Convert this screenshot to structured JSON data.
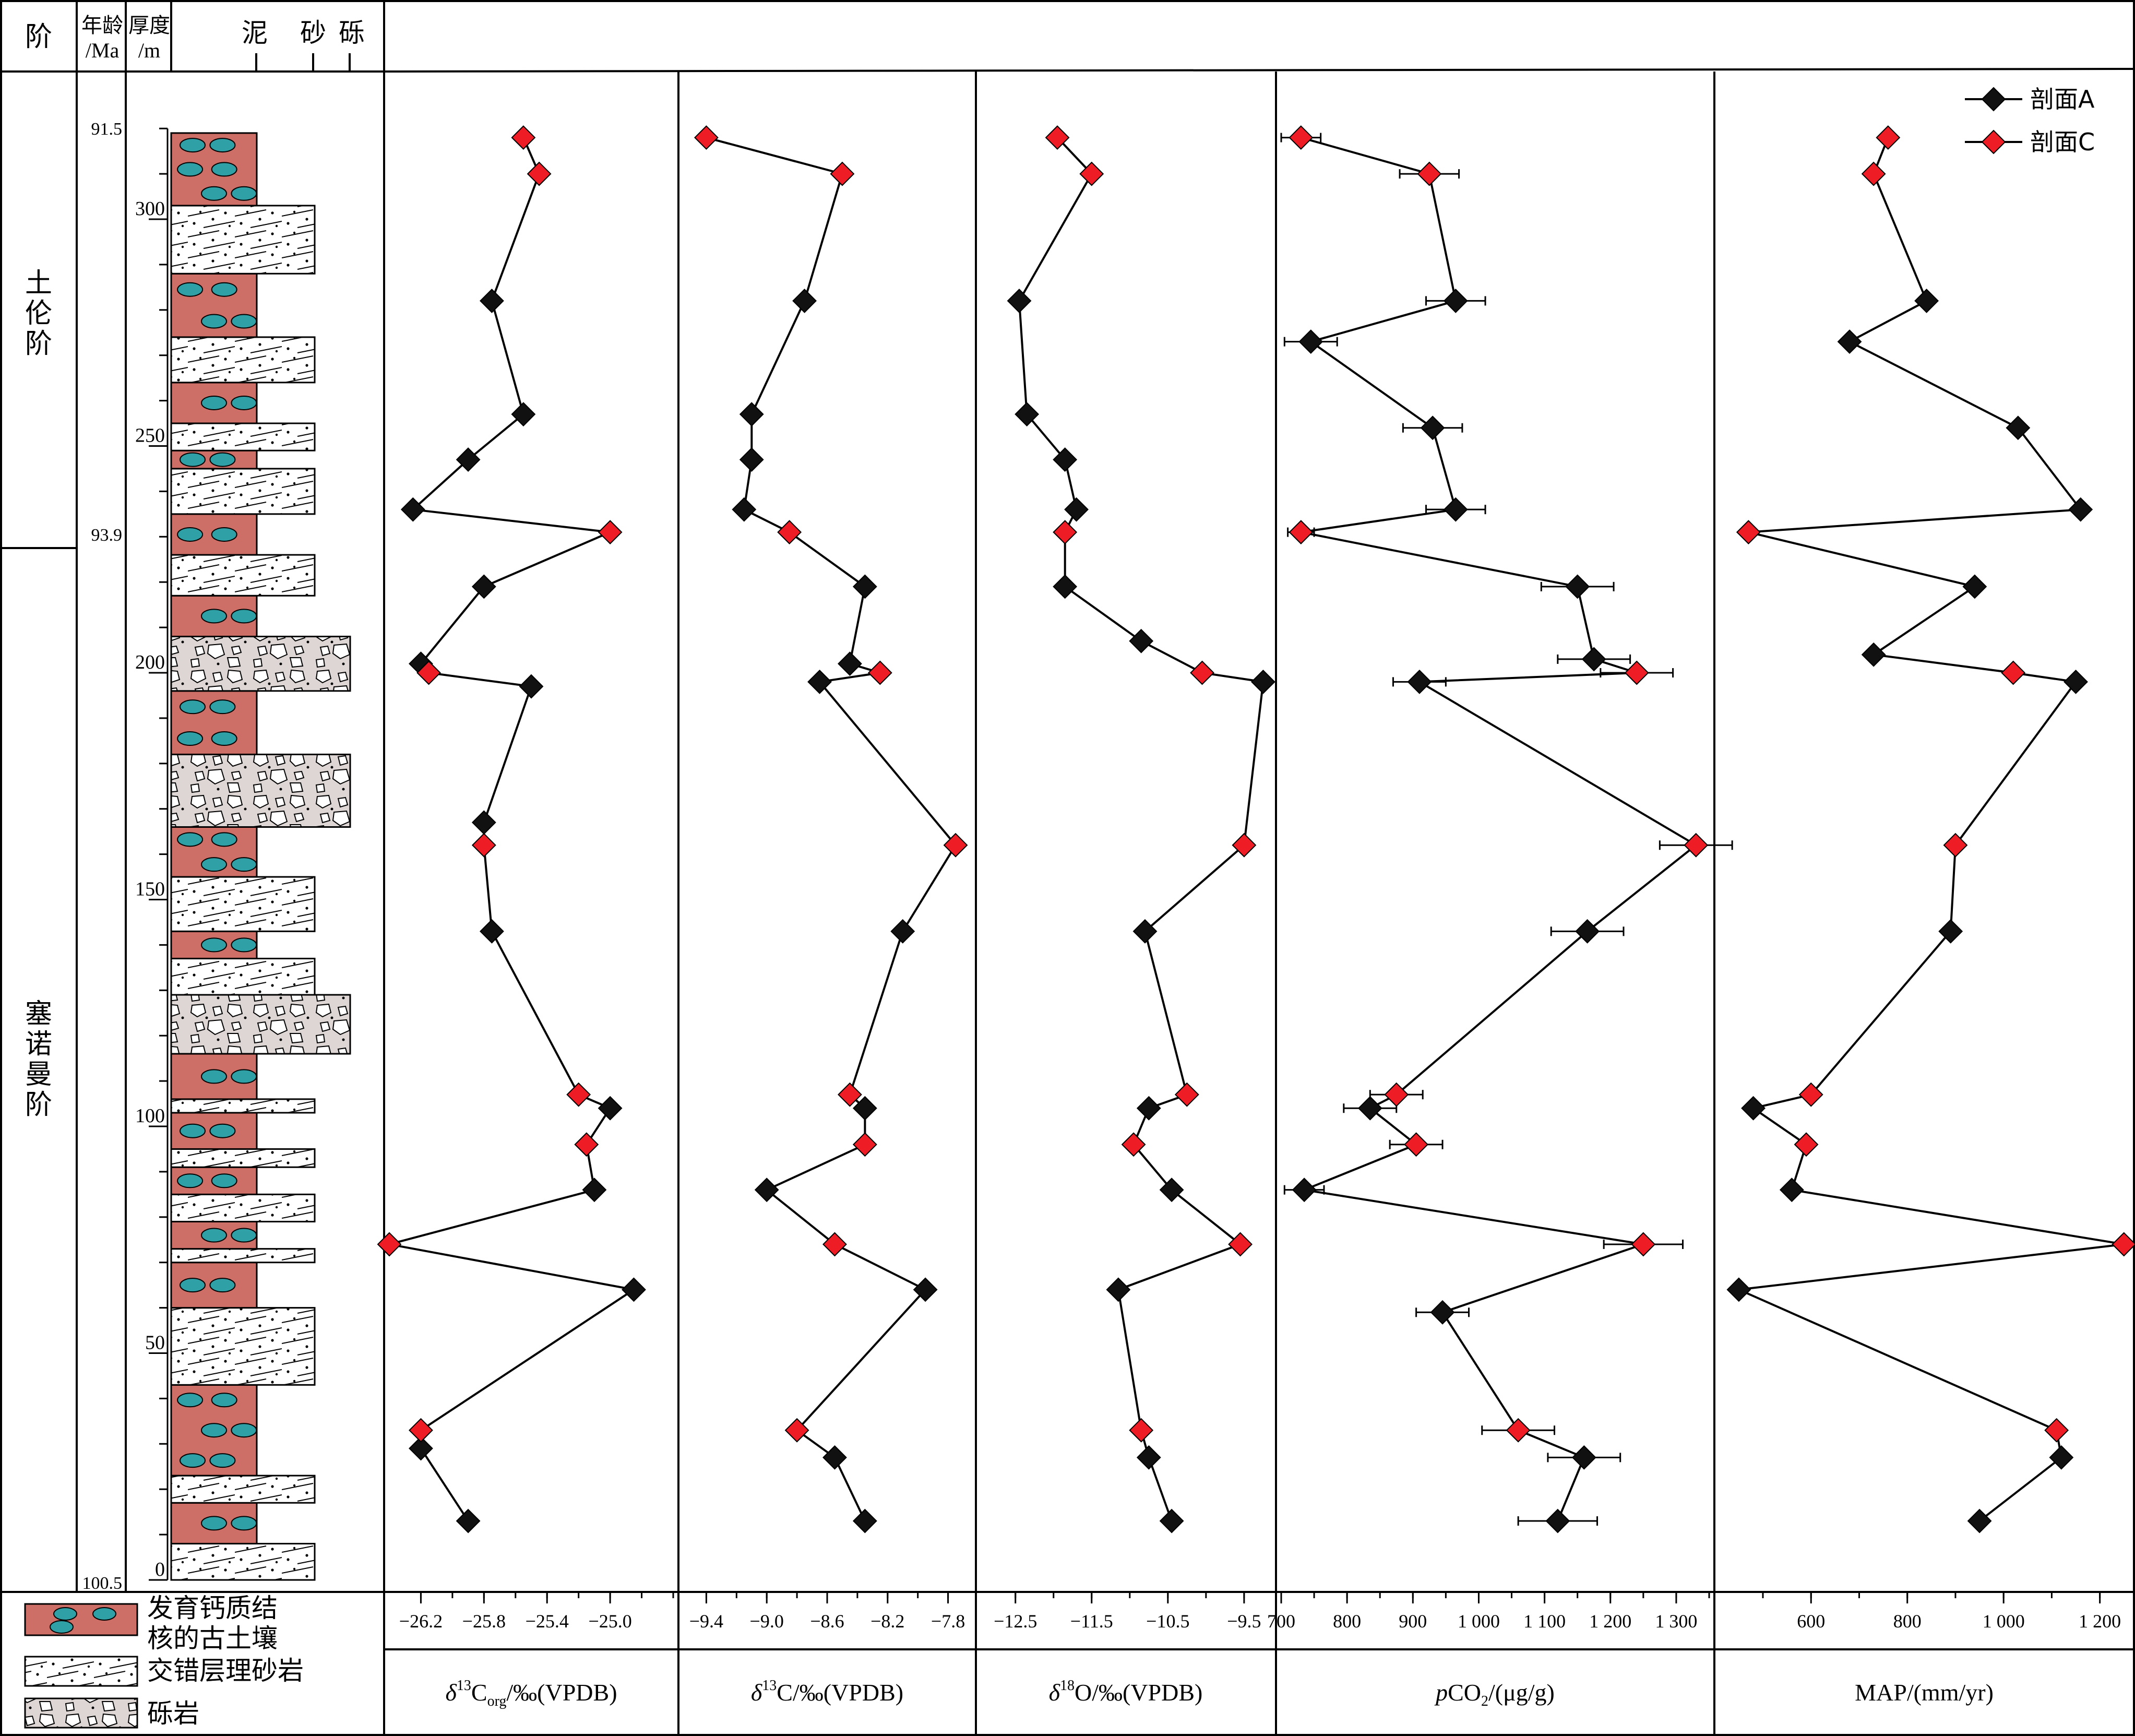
{
  "header": {
    "stage": "阶",
    "age": "年龄",
    "age_unit": "/Ma",
    "thickness": "厚度",
    "thickness_unit": "/m",
    "mud": "泥",
    "sand": "砂",
    "gravel": "砾"
  },
  "stages": [
    {
      "name": "土伦阶",
      "top_m": 320,
      "bottom_m": 224
    },
    {
      "name": "塞诺曼阶",
      "top_m": 224,
      "bottom_m": 0
    }
  ],
  "age_labels": [
    {
      "text": "91.5",
      "depth_m": 305
    },
    {
      "text": "93.9",
      "depth_m": 224
    },
    {
      "text": "100.5",
      "depth_m": 0
    }
  ],
  "depth_ticks": [
    {
      "text": "300",
      "depth_m": 300
    },
    {
      "text": "250",
      "depth_m": 250
    },
    {
      "text": "200",
      "depth_m": 200
    },
    {
      "text": "150",
      "depth_m": 150
    },
    {
      "text": "100",
      "depth_m": 100
    },
    {
      "text": "50",
      "depth_m": 50
    },
    {
      "text": "0",
      "depth_m": 0
    }
  ],
  "lithology_column": [
    {
      "type": "sandstone",
      "base_m": 0,
      "top_m": 8
    },
    {
      "type": "paleosol",
      "base_m": 8,
      "top_m": 17
    },
    {
      "type": "sandstone",
      "base_m": 17,
      "top_m": 23
    },
    {
      "type": "paleosol",
      "base_m": 23,
      "top_m": 43
    },
    {
      "type": "sandstone",
      "base_m": 43,
      "top_m": 60
    },
    {
      "type": "paleosol",
      "base_m": 60,
      "top_m": 70
    },
    {
      "type": "sandstone",
      "base_m": 70,
      "top_m": 73
    },
    {
      "type": "paleosol",
      "base_m": 73,
      "top_m": 79
    },
    {
      "type": "sandstone",
      "base_m": 79,
      "top_m": 85
    },
    {
      "type": "paleosol",
      "base_m": 85,
      "top_m": 91
    },
    {
      "type": "sandstone",
      "base_m": 91,
      "top_m": 95
    },
    {
      "type": "paleosol",
      "base_m": 95,
      "top_m": 103
    },
    {
      "type": "sandstone",
      "base_m": 103,
      "top_m": 106
    },
    {
      "type": "paleosol",
      "base_m": 106,
      "top_m": 116
    },
    {
      "type": "conglomerate",
      "base_m": 116,
      "top_m": 129
    },
    {
      "type": "sandstone",
      "base_m": 129,
      "top_m": 137
    },
    {
      "type": "paleosol",
      "base_m": 137,
      "top_m": 143
    },
    {
      "type": "sandstone",
      "base_m": 143,
      "top_m": 155
    },
    {
      "type": "paleosol",
      "base_m": 155,
      "top_m": 166
    },
    {
      "type": "conglomerate",
      "base_m": 166,
      "top_m": 182
    },
    {
      "type": "paleosol",
      "base_m": 182,
      "top_m": 196
    },
    {
      "type": "conglomerate",
      "base_m": 196,
      "top_m": 208
    },
    {
      "type": "paleosol",
      "base_m": 208,
      "top_m": 217
    },
    {
      "type": "sandstone",
      "base_m": 217,
      "top_m": 226
    },
    {
      "type": "paleosol",
      "base_m": 226,
      "top_m": 235
    },
    {
      "type": "sandstone",
      "base_m": 235,
      "top_m": 245
    },
    {
      "type": "paleosol",
      "base_m": 245,
      "top_m": 249
    },
    {
      "type": "sandstone",
      "base_m": 249,
      "top_m": 255
    },
    {
      "type": "paleosol",
      "base_m": 255,
      "top_m": 264
    },
    {
      "type": "sandstone",
      "base_m": 264,
      "top_m": 274
    },
    {
      "type": "paleosol",
      "base_m": 274,
      "top_m": 288
    },
    {
      "type": "sandstone",
      "base_m": 288,
      "top_m": 303
    },
    {
      "type": "paleosol",
      "base_m": 303,
      "top_m": 319
    }
  ],
  "legend": {
    "series_a": "剖面A",
    "series_c": "剖面C",
    "lith_paleosol_line1": "发育钙质结",
    "lith_paleosol_line2": "核的古土壤",
    "lith_sandstone": "交错层理砂岩",
    "lith_conglomerate": "砾岩"
  },
  "colors": {
    "paleosol": "#cd6f66",
    "nodule": "#2fa0a6",
    "series_a": "#111111",
    "series_c": "#ee1c25",
    "conglomerate_bg": "#ddd6d4"
  },
  "chart_data": [
    {
      "type": "line",
      "x_ticks": [
        "−26.2",
        "−25.8",
        "−25.4",
        "−25.0"
      ],
      "xlim": [
        -26.4,
        -24.6
      ],
      "ylim": [
        0,
        320
      ],
      "series": [
        {
          "name": "剖面A",
          "points": [
            [
              -25.9,
              13
            ],
            [
              -26.2,
              29
            ],
            [
              -24.85,
              64
            ],
            [
              -25.1,
              86
            ],
            [
              -25.0,
              104
            ],
            [
              -25.75,
              143
            ],
            [
              -25.8,
              167
            ],
            [
              -25.5,
              197
            ],
            [
              -26.2,
              202
            ],
            [
              -25.8,
              219
            ],
            [
              -26.25,
              236
            ],
            [
              -25.9,
              247
            ],
            [
              -25.55,
              257
            ],
            [
              -25.75,
              282
            ]
          ]
        },
        {
          "name": "剖面C",
          "points": [
            [
              -26.2,
              33
            ],
            [
              -26.4,
              74
            ],
            [
              -25.15,
              96
            ],
            [
              -25.2,
              107
            ],
            [
              -25.8,
              162
            ],
            [
              -26.15,
              200
            ],
            [
              -25.0,
              231
            ],
            [
              -25.45,
              310
            ],
            [
              -25.55,
              318
            ]
          ]
        }
      ]
    },
    {
      "type": "line",
      "x_ticks": [
        "−9.4",
        "−9.0",
        "−8.6",
        "−8.2",
        "−7.8"
      ],
      "xlim": [
        -9.55,
        -7.65
      ],
      "ylim": [
        0,
        320
      ],
      "series": [
        {
          "name": "剖面A",
          "points": [
            [
              -8.35,
              13
            ],
            [
              -8.55,
              27
            ],
            [
              -7.95,
              64
            ],
            [
              -9.0,
              86
            ],
            [
              -8.35,
              104
            ],
            [
              -8.1,
              143
            ],
            [
              -8.45,
              202
            ],
            [
              -8.65,
              198
            ],
            [
              -8.35,
              219
            ],
            [
              -9.15,
              236
            ],
            [
              -9.1,
              247
            ],
            [
              -9.1,
              257
            ],
            [
              -8.75,
              282
            ]
          ]
        },
        {
          "name": "剖面C",
          "points": [
            [
              -8.8,
              33
            ],
            [
              -8.55,
              74
            ],
            [
              -8.35,
              96
            ],
            [
              -8.45,
              107
            ],
            [
              -7.75,
              162
            ],
            [
              -8.25,
              200
            ],
            [
              -8.85,
              231
            ],
            [
              -8.5,
              310
            ],
            [
              -9.4,
              318
            ]
          ]
        }
      ]
    },
    {
      "type": "line",
      "x_ticks": [
        "−12.5",
        "−11.5",
        "−10.5",
        "−9.5"
      ],
      "xlim": [
        -12.95,
        -9.15
      ],
      "ylim": [
        0,
        320
      ],
      "series": [
        {
          "name": "剖面A",
          "points": [
            [
              -10.45,
              13
            ],
            [
              -10.75,
              27
            ],
            [
              -11.15,
              64
            ],
            [
              -10.45,
              86
            ],
            [
              -10.75,
              104
            ],
            [
              -10.8,
              143
            ],
            [
              -9.25,
              198
            ],
            [
              -10.85,
              207
            ],
            [
              -11.85,
              219
            ],
            [
              -11.7,
              236
            ],
            [
              -11.85,
              247
            ],
            [
              -12.35,
              257
            ],
            [
              -12.45,
              282
            ]
          ]
        },
        {
          "name": "剖面C",
          "points": [
            [
              -10.85,
              33
            ],
            [
              -9.55,
              74
            ],
            [
              -10.95,
              96
            ],
            [
              -10.25,
              107
            ],
            [
              -9.5,
              162
            ],
            [
              -10.05,
              200
            ],
            [
              -11.85,
              231
            ],
            [
              -11.5,
              310
            ],
            [
              -11.95,
              318
            ]
          ]
        }
      ]
    },
    {
      "type": "line",
      "x_ticks": [
        "700",
        "800",
        "900",
        "1 000",
        "1 100",
        "1 200",
        "1 300"
      ],
      "xlim": [
        700,
        1350
      ],
      "ylim": [
        0,
        320
      ],
      "series": [
        {
          "name": "剖面A",
          "points": [
            [
              1120,
              13
            ],
            [
              1160,
              27
            ],
            [
              945,
              59
            ],
            [
              735,
              86
            ],
            [
              835,
              104
            ],
            [
              1165,
              143
            ],
            [
              910,
              198
            ],
            [
              1175,
              203
            ],
            [
              1150,
              219
            ],
            [
              965,
              236
            ],
            [
              930,
              254
            ],
            [
              745,
              273
            ],
            [
              965,
              282
            ]
          ],
          "xerr": [
            60,
            55,
            40,
            30,
            40,
            55,
            40,
            55,
            55,
            45,
            45,
            40,
            45
          ]
        },
        {
          "name": "剖面C",
          "points": [
            [
              1060,
              33
            ],
            [
              1250,
              74
            ],
            [
              905,
              96
            ],
            [
              875,
              107
            ],
            [
              1330,
              162
            ],
            [
              1240,
              200
            ],
            [
              730,
              231
            ],
            [
              925,
              310
            ],
            [
              730,
              318
            ]
          ],
          "xerr": [
            55,
            60,
            40,
            40,
            55,
            55,
            20,
            45,
            30
          ]
        }
      ]
    },
    {
      "type": "line",
      "x_ticks": [
        "600",
        "800",
        "1 000",
        "1 200"
      ],
      "xlim": [
        410,
        1260
      ],
      "ylim": [
        0,
        320
      ],
      "series": [
        {
          "name": "剖面A",
          "points": [
            [
              950,
              13
            ],
            [
              1120,
              27
            ],
            [
              450,
              64
            ],
            [
              560,
              86
            ],
            [
              480,
              104
            ],
            [
              890,
              143
            ],
            [
              1150,
              198
            ],
            [
              730,
              204
            ],
            [
              940,
              219
            ],
            [
              1160,
              236
            ],
            [
              1030,
              254
            ],
            [
              680,
              273
            ],
            [
              840,
              282
            ]
          ]
        },
        {
          "name": "剖面C",
          "points": [
            [
              1110,
              33
            ],
            [
              1250,
              74
            ],
            [
              590,
              96
            ],
            [
              600,
              107
            ],
            [
              900,
              162
            ],
            [
              1020,
              200
            ],
            [
              470,
              231
            ],
            [
              730,
              310
            ],
            [
              760,
              318
            ]
          ]
        }
      ]
    }
  ],
  "x_labels": [
    {
      "delta": "δ",
      "sup": "13",
      "main": "C",
      "sub": "org",
      "rest": "/‰(VPDB)"
    },
    {
      "delta": "δ",
      "sup": "13",
      "main": "C/‰(VPDB)",
      "sub": "",
      "rest": ""
    },
    {
      "delta": "δ",
      "sup": "18",
      "main": "O/‰(VPDB)",
      "sub": "",
      "rest": ""
    },
    {
      "delta": "p",
      "sup": "",
      "main": "CO",
      "sub": "2",
      "rest": "/(μg/g)"
    },
    {
      "delta": "",
      "sup": "",
      "main": "MAP/(mm/yr)",
      "sub": "",
      "rest": ""
    }
  ]
}
